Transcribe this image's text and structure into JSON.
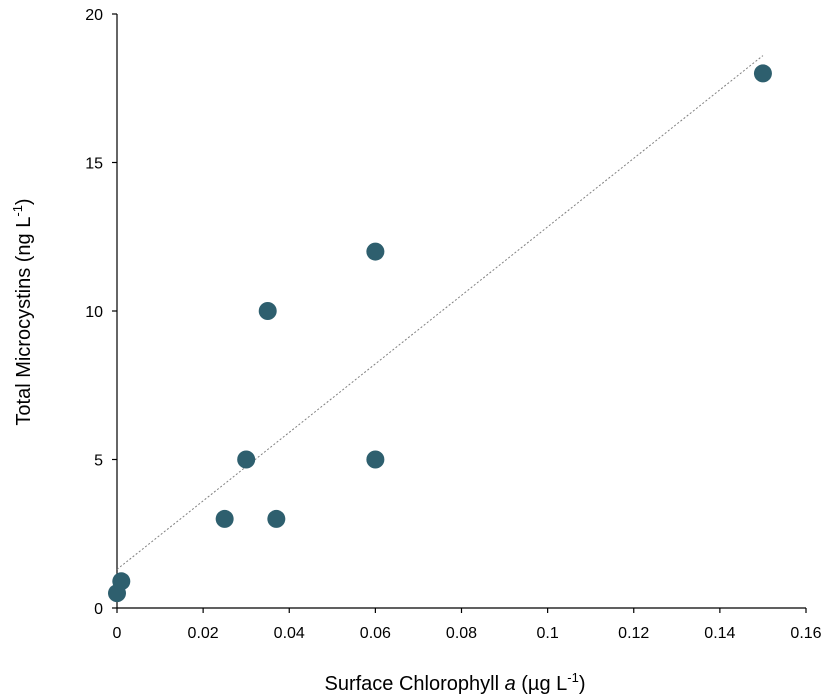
{
  "chart_data": {
    "type": "scatter",
    "title": "",
    "xlabel": {
      "prefix": "Surface Chlorophyll ",
      "italic": "a",
      "middle": " (µg L",
      "superscript": "-1",
      "suffix": ")"
    },
    "ylabel": {
      "prefix": "Total Microcystins (ng L",
      "superscript": "-1",
      "suffix": ")"
    },
    "xlim": [
      0,
      0.16
    ],
    "ylim": [
      0,
      20
    ],
    "xticks": [
      0,
      0.02,
      0.04,
      0.06,
      0.08,
      0.1,
      0.12,
      0.14,
      0.16
    ],
    "xtick_labels": [
      "0",
      "0.02",
      "0.04",
      "0.06",
      "0.08",
      "0.1",
      "0.12",
      "0.14",
      "0.16"
    ],
    "yticks": [
      0,
      5,
      10,
      15,
      20
    ],
    "ytick_labels": [
      "0",
      "5",
      "10",
      "15",
      "20"
    ],
    "grid": false,
    "legend": "none",
    "marker_color": "#2e5f6e",
    "trendline": {
      "type": "linear",
      "style": "dotted",
      "color": "#808080",
      "x": [
        0,
        0.15
      ],
      "y": [
        1.3,
        18.6
      ]
    },
    "series": [
      {
        "x": [
          0,
          0.001,
          0.025,
          0.03,
          0.035,
          0.037,
          0.06,
          0.06,
          0.15
        ],
        "y": [
          0.5,
          0.9,
          3,
          5,
          10,
          3,
          12,
          5,
          18
        ]
      }
    ]
  }
}
